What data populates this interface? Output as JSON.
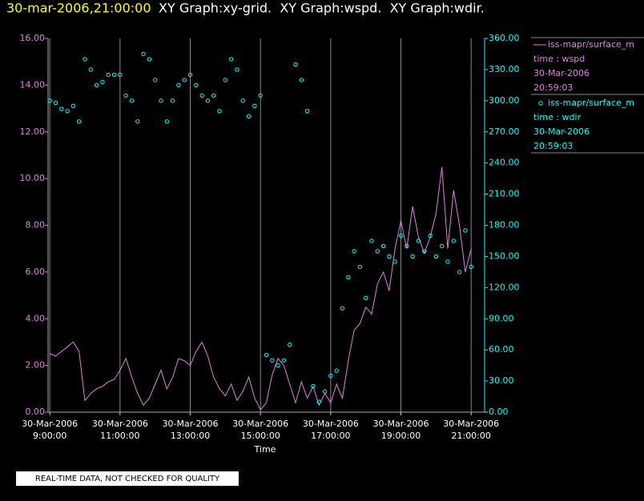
{
  "chart_data": {
    "type": "line_scatter",
    "title": "30-mar-2006,21:00:00",
    "subtitle": "XY Graph:xy-grid.  XY Graph:wspd.  XY Graph:wdir.",
    "xlabel": "Time",
    "footnote": "REAL-TIME DATA, NOT CHECKED FOR QUALITY",
    "grid": true,
    "legend": "right",
    "x": [
      "2006-03-30T09:00",
      "2006-03-30T09:10",
      "2006-03-30T09:20",
      "2006-03-30T09:30",
      "2006-03-30T09:40",
      "2006-03-30T09:50",
      "2006-03-30T10:00",
      "2006-03-30T10:10",
      "2006-03-30T10:20",
      "2006-03-30T10:30",
      "2006-03-30T10:40",
      "2006-03-30T10:50",
      "2006-03-30T11:00",
      "2006-03-30T11:10",
      "2006-03-30T11:20",
      "2006-03-30T11:30",
      "2006-03-30T11:40",
      "2006-03-30T11:50",
      "2006-03-30T12:00",
      "2006-03-30T12:10",
      "2006-03-30T12:20",
      "2006-03-30T12:30",
      "2006-03-30T12:40",
      "2006-03-30T12:50",
      "2006-03-30T13:00",
      "2006-03-30T13:10",
      "2006-03-30T13:20",
      "2006-03-30T13:30",
      "2006-03-30T13:40",
      "2006-03-30T13:50",
      "2006-03-30T14:00",
      "2006-03-30T14:10",
      "2006-03-30T14:20",
      "2006-03-30T14:30",
      "2006-03-30T14:40",
      "2006-03-30T14:50",
      "2006-03-30T15:00",
      "2006-03-30T15:10",
      "2006-03-30T15:20",
      "2006-03-30T15:30",
      "2006-03-30T15:40",
      "2006-03-30T15:50",
      "2006-03-30T16:00",
      "2006-03-30T16:10",
      "2006-03-30T16:20",
      "2006-03-30T16:30",
      "2006-03-30T16:40",
      "2006-03-30T16:50",
      "2006-03-30T17:00",
      "2006-03-30T17:10",
      "2006-03-30T17:20",
      "2006-03-30T17:30",
      "2006-03-30T17:40",
      "2006-03-30T17:50",
      "2006-03-30T18:00",
      "2006-03-30T18:10",
      "2006-03-30T18:20",
      "2006-03-30T18:30",
      "2006-03-30T18:40",
      "2006-03-30T18:50",
      "2006-03-30T19:00",
      "2006-03-30T19:10",
      "2006-03-30T19:20",
      "2006-03-30T19:30",
      "2006-03-30T19:40",
      "2006-03-30T19:50",
      "2006-03-30T20:00",
      "2006-03-30T20:10",
      "2006-03-30T20:20",
      "2006-03-30T20:30",
      "2006-03-30T20:40",
      "2006-03-30T20:50",
      "2006-03-30T21:00"
    ],
    "xlim": [
      "2006-03-30T08:57",
      "2006-03-30T21:23"
    ],
    "xticks": [
      {
        "value": "2006-03-30T09:00",
        "label": "30-Mar-2006\n9:00:00"
      },
      {
        "value": "2006-03-30T11:00",
        "label": "30-Mar-2006\n11:00:00"
      },
      {
        "value": "2006-03-30T13:00",
        "label": "30-Mar-2006\n13:00:00"
      },
      {
        "value": "2006-03-30T15:00",
        "label": "30-Mar-2006\n15:00:00"
      },
      {
        "value": "2006-03-30T17:00",
        "label": "30-Mar-2006\n17:00:00"
      },
      {
        "value": "2006-03-30T19:00",
        "label": "30-Mar-2006\n19:00:00"
      },
      {
        "value": "2006-03-30T21:00",
        "label": "30-Mar-2006\n21:00:00"
      }
    ],
    "ylim": [
      0,
      16
    ],
    "yticks": [
      {
        "value": 0,
        "label": "0.00"
      },
      {
        "value": 2,
        "label": "2.00"
      },
      {
        "value": 4,
        "label": "4.00"
      },
      {
        "value": 6,
        "label": "6.00"
      },
      {
        "value": 8,
        "label": "8.00"
      },
      {
        "value": 10,
        "label": "10.00"
      },
      {
        "value": 12,
        "label": "12.00"
      },
      {
        "value": 14,
        "label": "14.00"
      },
      {
        "value": 16,
        "label": "16.00"
      }
    ],
    "y2lim": [
      0,
      360
    ],
    "y2ticks": [
      {
        "value": 0,
        "label": "0.00"
      },
      {
        "value": 30,
        "label": "30.00"
      },
      {
        "value": 60,
        "label": "60.00"
      },
      {
        "value": 90,
        "label": "90.00"
      },
      {
        "value": 120,
        "label": "120.00"
      },
      {
        "value": 150,
        "label": "150.00"
      },
      {
        "value": 180,
        "label": "180.00"
      },
      {
        "value": 210,
        "label": "210.00"
      },
      {
        "value": 240,
        "label": "240.00"
      },
      {
        "value": 270,
        "label": "270.00"
      },
      {
        "value": 300,
        "label": "300.00"
      },
      {
        "value": 330,
        "label": "330.00"
      },
      {
        "value": 360,
        "label": "360.00"
      }
    ],
    "series": [
      {
        "name": "iss-mapr/surface_m",
        "legend_detail": [
          "time : wspd",
          "30-Mar-2006",
          "20:59:03"
        ],
        "color": "#e080e0",
        "mark": "line",
        "axis": "y",
        "values": [
          2.5,
          2.4,
          2.6,
          2.8,
          3.0,
          2.6,
          0.5,
          0.8,
          1.0,
          1.1,
          1.3,
          1.4,
          1.8,
          2.3,
          1.5,
          0.8,
          0.3,
          0.6,
          1.2,
          1.8,
          1.0,
          1.5,
          2.3,
          2.2,
          2.0,
          2.6,
          3.0,
          2.4,
          1.5,
          1.0,
          0.7,
          1.2,
          0.5,
          0.9,
          1.5,
          0.6,
          0.1,
          0.4,
          1.6,
          2.3,
          2.0,
          1.2,
          0.4,
          1.3,
          0.6,
          1.1,
          0.3,
          0.8,
          0.4,
          1.2,
          0.6,
          2.2,
          3.5,
          3.8,
          4.5,
          4.2,
          5.5,
          6.0,
          5.2,
          7.0,
          8.2,
          7.0,
          8.8,
          7.5,
          6.8,
          7.5,
          8.5,
          10.5,
          7.0,
          9.5,
          8.0,
          6.0,
          7.0
        ]
      },
      {
        "name": "iss-mapr/surface_m",
        "legend_detail": [
          "time : wdir",
          "30-Mar-2006",
          "20:59:03"
        ],
        "color": "#00ffff",
        "mark": "circle",
        "axis": "y2",
        "values": [
          300,
          298,
          292,
          290,
          295,
          280,
          340,
          330,
          315,
          318,
          325,
          325,
          325,
          305,
          300,
          280,
          345,
          340,
          320,
          300,
          280,
          300,
          315,
          320,
          325,
          315,
          305,
          300,
          305,
          290,
          320,
          340,
          330,
          300,
          285,
          295,
          305,
          55,
          50,
          45,
          50,
          65,
          335,
          320,
          290,
          25,
          10,
          20,
          35,
          40,
          100,
          130,
          155,
          140,
          110,
          165,
          155,
          160,
          150,
          145,
          170,
          160,
          150,
          165,
          155,
          170,
          150,
          160,
          145,
          165,
          135,
          175,
          140
        ]
      }
    ]
  }
}
